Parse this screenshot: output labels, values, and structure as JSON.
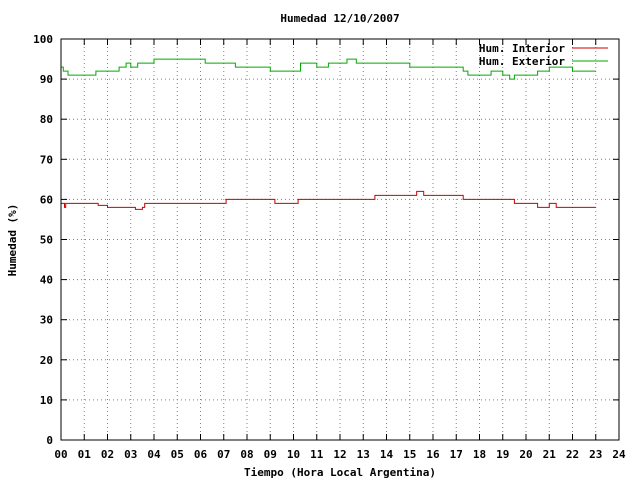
{
  "chart_data": {
    "type": "line",
    "title": "Humedad 12/10/2007",
    "xlabel": "Tiempo (Hora Local Argentina)",
    "ylabel": "Humedad (%)",
    "xlim": [
      0,
      24
    ],
    "ylim": [
      0,
      100
    ],
    "x_ticks": [
      0,
      1,
      2,
      3,
      4,
      5,
      6,
      7,
      8,
      9,
      10,
      11,
      12,
      13,
      14,
      15,
      16,
      17,
      18,
      19,
      20,
      21,
      22,
      23,
      24
    ],
    "x_tick_labels": [
      "00",
      "01",
      "02",
      "03",
      "04",
      "05",
      "06",
      "07",
      "08",
      "09",
      "10",
      "11",
      "12",
      "13",
      "14",
      "15",
      "16",
      "17",
      "18",
      "19",
      "20",
      "21",
      "22",
      "23",
      "24"
    ],
    "y_ticks": [
      0,
      10,
      20,
      30,
      40,
      50,
      60,
      70,
      80,
      90,
      100
    ],
    "y_tick_labels": [
      "0",
      "10",
      "20",
      "30",
      "40",
      "50",
      "60",
      "70",
      "80",
      "90",
      "100"
    ],
    "grid": true,
    "legend_position": "top-right",
    "series": [
      {
        "name": "Hum. Interior",
        "color": "#cc0000",
        "x": [
          0,
          0.15,
          0.2,
          0.3,
          1.5,
          1.6,
          2.0,
          2.1,
          2.5,
          2.9,
          3.2,
          3.5,
          3.6,
          4.0,
          5.0,
          5.5,
          6.0,
          6.5,
          7.0,
          7.1,
          7.2,
          7.5,
          8.0,
          8.5,
          9.0,
          9.2,
          9.5,
          10.0,
          10.2,
          10.4,
          11.0,
          11.5,
          12.0,
          12.5,
          13.0,
          13.5,
          14.0,
          14.5,
          15.0,
          15.3,
          15.6,
          16.0,
          16.5,
          17.0,
          17.3,
          17.5,
          18.0,
          18.5,
          19.0,
          19.5,
          20.0,
          20.5,
          21.0,
          21.3,
          22.0,
          22.5,
          23.0
        ],
        "y": [
          59,
          58,
          59,
          59,
          59,
          58.5,
          58,
          58,
          58,
          58,
          57.5,
          58,
          59,
          59,
          59,
          59,
          59,
          59,
          59,
          60,
          60,
          60,
          60,
          60,
          60,
          59,
          59,
          59,
          60,
          60,
          60,
          60,
          60,
          60,
          60,
          61,
          61,
          61,
          61,
          62,
          61,
          61,
          61,
          61,
          60,
          60,
          60,
          60,
          60,
          59,
          59,
          58,
          59,
          58,
          58,
          58,
          58
        ]
      },
      {
        "name": "Hum. Exterior",
        "color": "#00aa00",
        "x": [
          0,
          0.1,
          0.3,
          0.5,
          1.0,
          1.5,
          2.0,
          2.5,
          2.8,
          3.0,
          3.3,
          3.5,
          4.0,
          5.0,
          6.0,
          6.2,
          7.0,
          7.5,
          8.0,
          8.5,
          9.0,
          9.3,
          10.0,
          10.3,
          11.0,
          11.5,
          12.0,
          12.3,
          12.7,
          13.0,
          14.0,
          14.5,
          15.0,
          16.0,
          17.0,
          17.3,
          17.5,
          18.0,
          18.5,
          19.0,
          19.3,
          19.5,
          20.0,
          20.5,
          21.0,
          21.5,
          22.0,
          22.5,
          23.0
        ],
        "y": [
          93,
          92,
          91,
          91,
          91,
          92,
          92,
          93,
          94,
          93,
          94,
          94,
          95,
          95,
          95,
          94,
          94,
          93,
          93,
          93,
          92,
          92,
          92,
          94,
          93,
          94,
          94,
          95,
          94,
          94,
          94,
          94,
          93,
          93,
          93,
          92,
          91,
          91,
          92,
          91,
          90,
          91,
          91,
          92,
          93,
          93,
          92,
          92,
          92
        ]
      }
    ]
  }
}
